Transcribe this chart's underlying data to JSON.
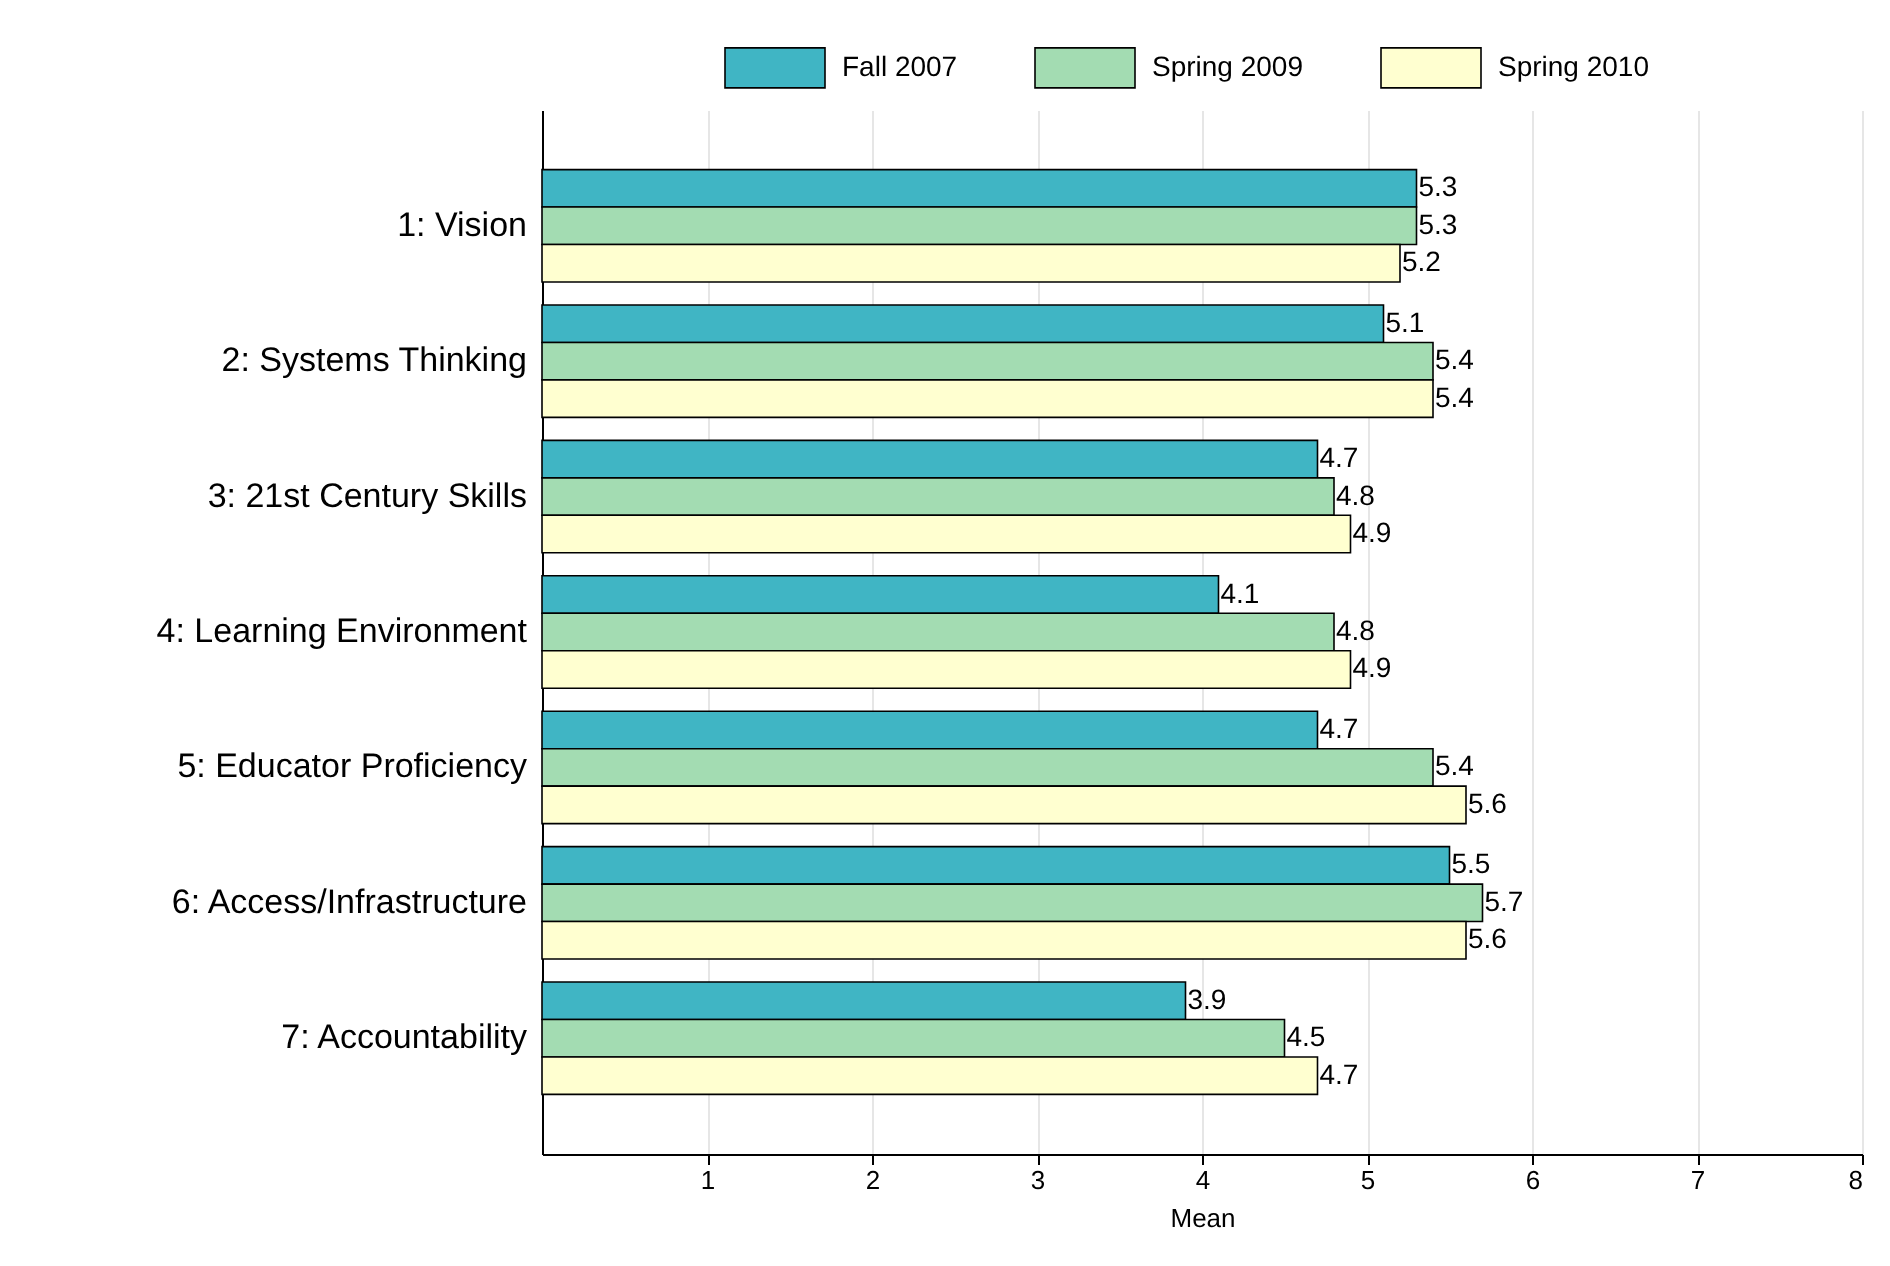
{
  "chart_data": {
    "type": "bar",
    "orientation": "horizontal",
    "xlabel": "Mean",
    "categories": [
      "1: Vision",
      "2: Systems Thinking",
      "3: 21st Century Skills",
      "4: Learning Environment",
      "5: Educator Proficiency",
      "6: Access/Infrastructure",
      "7: Accountability"
    ],
    "series": [
      {
        "name": "Fall 2007",
        "color": "#40b5c4",
        "values": [
          5.3,
          5.1,
          4.7,
          4.1,
          4.7,
          5.5,
          3.9
        ]
      },
      {
        "name": "Spring 2009",
        "color": "#a3dcb2",
        "values": [
          5.3,
          5.4,
          4.8,
          4.8,
          5.4,
          5.7,
          4.5
        ]
      },
      {
        "name": "Spring 2010",
        "color": "#ffffd0",
        "values": [
          5.2,
          5.4,
          4.9,
          4.9,
          5.6,
          5.6,
          4.7
        ]
      }
    ],
    "xlim": [
      0,
      8
    ],
    "xticks": [
      1,
      2,
      3,
      4,
      5,
      6,
      7,
      8
    ],
    "grid": "x",
    "legend": "top right",
    "data_labels": true
  }
}
